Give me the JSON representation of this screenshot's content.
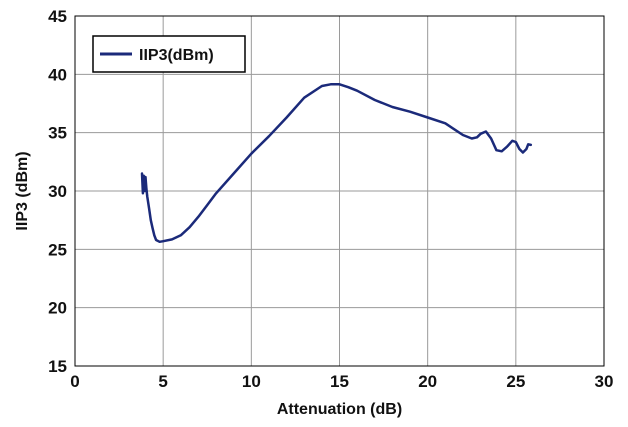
{
  "chart_data": {
    "type": "line",
    "xlabel": "Attenuation (dB)",
    "ylabel": "IIP3 (dBm)",
    "xlim": [
      0,
      30
    ],
    "ylim": [
      15,
      45
    ],
    "xticks": [
      0,
      5,
      10,
      15,
      20,
      25,
      30
    ],
    "yticks": [
      15,
      20,
      25,
      30,
      35,
      40,
      45
    ],
    "grid": true,
    "legend_position": "top-left",
    "series": [
      {
        "name": "IIP3(dBm)",
        "color": "#1b2a7a",
        "x": [
          3.8,
          3.85,
          3.9,
          3.95,
          4.0,
          4.05,
          4.1,
          4.2,
          4.3,
          4.4,
          4.5,
          4.6,
          4.8,
          5.0,
          5.5,
          6.0,
          6.5,
          7.0,
          7.5,
          8.0,
          9.0,
          10.0,
          11.0,
          12.0,
          13.0,
          14.0,
          14.5,
          15.0,
          15.5,
          16.0,
          17.0,
          18.0,
          19.0,
          20.0,
          21.0,
          21.5,
          22.0,
          22.5,
          22.8,
          23.0,
          23.3,
          23.6,
          23.9,
          24.2,
          24.5,
          24.8,
          25.0,
          25.2,
          25.4,
          25.6,
          25.7,
          25.85
        ],
        "y": [
          31.5,
          29.8,
          31.3,
          30.0,
          31.2,
          30.2,
          29.5,
          28.5,
          27.5,
          26.8,
          26.2,
          25.8,
          25.65,
          25.7,
          25.85,
          26.2,
          26.9,
          27.8,
          28.8,
          29.8,
          31.5,
          33.2,
          34.7,
          36.3,
          38.0,
          39.0,
          39.15,
          39.15,
          38.9,
          38.6,
          37.8,
          37.2,
          36.8,
          36.3,
          35.8,
          35.3,
          34.8,
          34.5,
          34.6,
          34.9,
          35.1,
          34.5,
          33.5,
          33.4,
          33.8,
          34.3,
          34.2,
          33.6,
          33.3,
          33.6,
          34.0,
          33.95
        ]
      }
    ]
  }
}
